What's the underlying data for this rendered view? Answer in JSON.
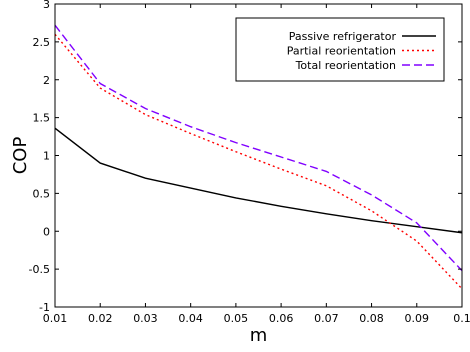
{
  "chart_data": {
    "type": "line",
    "xlabel": "m",
    "ylabel": "COP",
    "xlim": [
      0.01,
      0.1
    ],
    "ylim": [
      -1,
      3
    ],
    "x": [
      0.01,
      0.02,
      0.03,
      0.04,
      0.05,
      0.06,
      0.07,
      0.08,
      0.09,
      0.1
    ],
    "xticks": [
      "0.01",
      "0.02",
      "0.03",
      "0.04",
      "0.05",
      "0.06",
      "0.07",
      "0.08",
      "0.09",
      "0.1"
    ],
    "yticks": [
      {
        "value": 3,
        "label": "3"
      },
      {
        "value": 2.5,
        "label": "2.5"
      },
      {
        "value": 2,
        "label": "2"
      },
      {
        "value": 1.5,
        "label": "1.5"
      },
      {
        "value": 1,
        "label": "1"
      },
      {
        "value": 0.5,
        "label": "0.5"
      },
      {
        "value": 0,
        "label": "0"
      },
      {
        "value": -0.5,
        "label": "-0.5"
      },
      {
        "value": -1,
        "label": "-1"
      }
    ],
    "grid": false,
    "legend_position": "top-right",
    "series": [
      {
        "name": "Passive refrigerator",
        "color": "#000000",
        "style": "solid",
        "values": [
          1.36,
          0.9,
          0.7,
          0.57,
          0.44,
          0.33,
          0.23,
          0.14,
          0.06,
          -0.02
        ]
      },
      {
        "name": "Partial reorientation",
        "color": "#ff0000",
        "style": "dotted",
        "values": [
          2.6,
          1.89,
          1.54,
          1.29,
          1.05,
          0.82,
          0.6,
          0.27,
          -0.13,
          -0.76
        ]
      },
      {
        "name": "Total reorientation",
        "color": "#8000ff",
        "style": "dashed",
        "values": [
          2.72,
          1.95,
          1.62,
          1.38,
          1.17,
          0.98,
          0.79,
          0.48,
          0.11,
          -0.52
        ]
      }
    ]
  }
}
